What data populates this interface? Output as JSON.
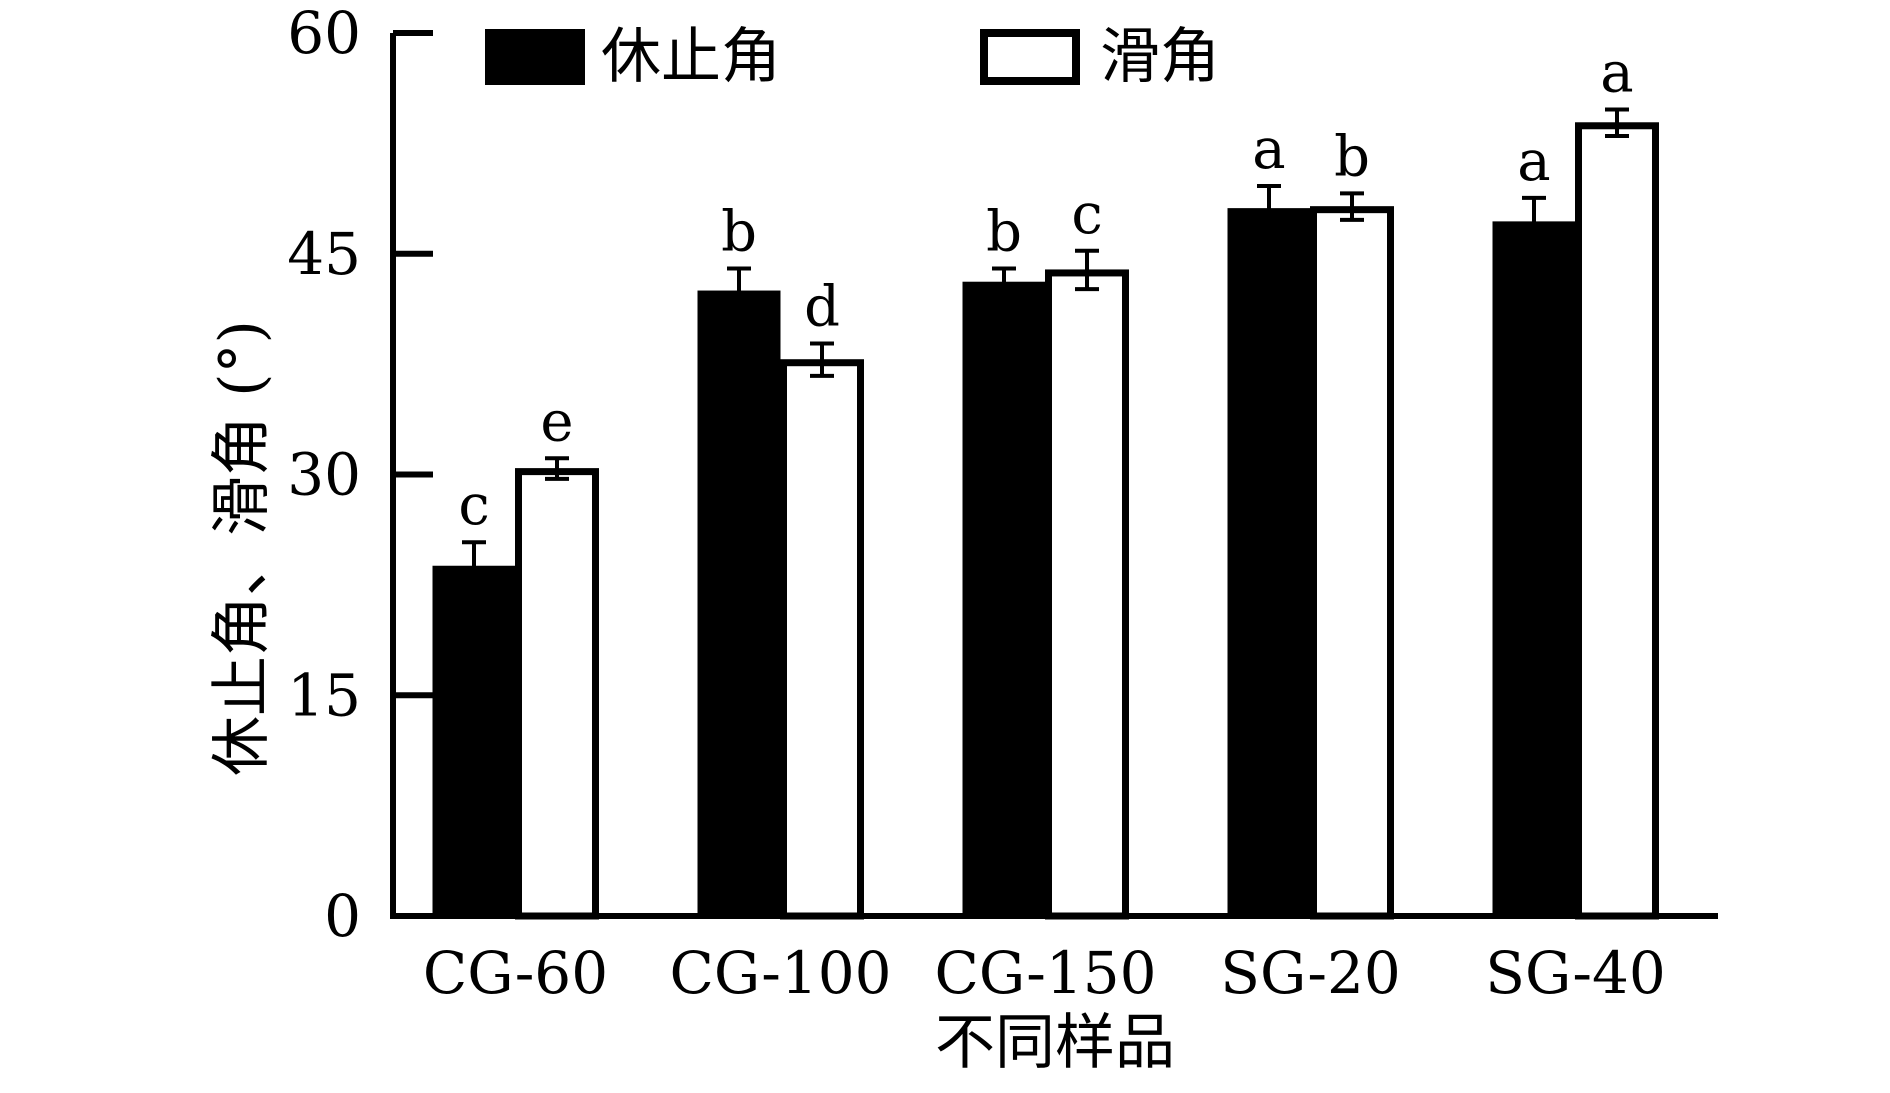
{
  "chart_data": {
    "type": "bar",
    "title": "",
    "xlabel": "不同样品",
    "ylabel": "休止角、滑角 (°)",
    "ylim": [
      0,
      60
    ],
    "yticks": [
      "0",
      "15",
      "30",
      "45",
      "60"
    ],
    "categories": [
      "CG-60",
      "CG-100",
      "CG-150",
      "SG-20",
      "SG-40"
    ],
    "legend_position": "top-left",
    "series": [
      {
        "name": "休止角",
        "fill": "#000000",
        "values": [
          23.8,
          42.5,
          43.1,
          48.1,
          47.2
        ],
        "errors": [
          1.6,
          1.5,
          0.9,
          1.5,
          1.6
        ],
        "labels": [
          "c",
          "b",
          "b",
          "a",
          "a"
        ]
      },
      {
        "name": "滑角",
        "fill": "#ffffff",
        "values": [
          30.4,
          37.8,
          43.9,
          48.2,
          53.9
        ],
        "errors": [
          0.7,
          1.1,
          1.3,
          0.9,
          0.9
        ],
        "labels": [
          "e",
          "d",
          "c",
          "b",
          "a"
        ]
      }
    ]
  }
}
